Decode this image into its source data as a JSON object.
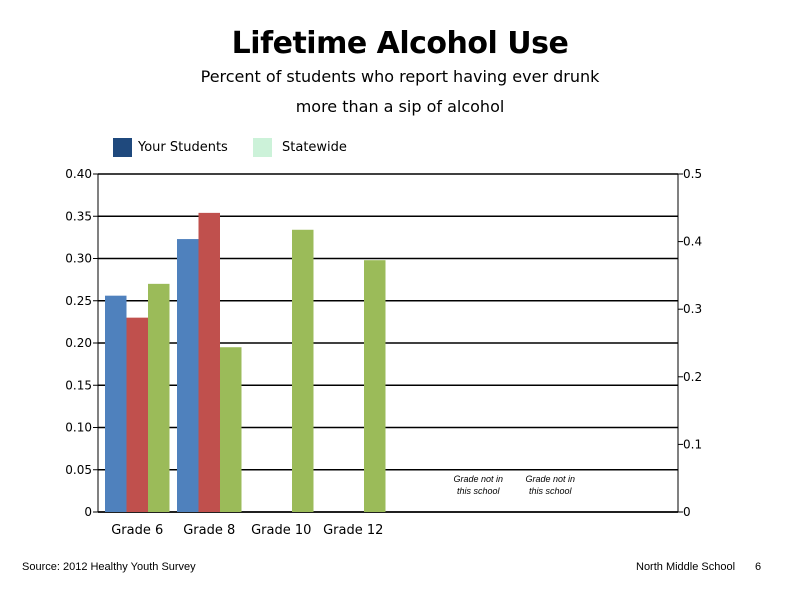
{
  "title": "Lifetime Alcohol Use",
  "subtitle_line1": "Percent of students who report having ever drunk",
  "subtitle_line2": "more than a sip of alcohol",
  "legend": [
    {
      "label": "Your Students",
      "color": "#1f497d"
    },
    {
      "label": "Statewide",
      "color": "#ccf2d9"
    }
  ],
  "footer": {
    "source": "Source: 2012 Healthy Youth Survey",
    "school": "North Middle School",
    "page": "6"
  },
  "chart_data": {
    "type": "bar",
    "categories": [
      "Grade 6",
      "Grade 8",
      "Grade 10",
      "Grade 12",
      "",
      ""
    ],
    "series": [
      {
        "color": "#4f81bd",
        "values": [
          0.256,
          0.323,
          null,
          null,
          null,
          null
        ]
      },
      {
        "color": "#c0504d",
        "values": [
          0.23,
          0.354,
          null,
          null,
          null,
          null
        ]
      },
      {
        "color": "#9bbb59",
        "values": [
          0.27,
          0.195,
          0.334,
          0.298,
          null,
          null
        ]
      }
    ],
    "left_axis": {
      "ylim": [
        0,
        0.4
      ],
      "ticks": [
        "0",
        "0.05",
        "0.10",
        "0.15",
        "0.20",
        "0.25",
        "0.30",
        "0.35",
        "0.40"
      ]
    },
    "right_axis": {
      "ylim": [
        0,
        0.5
      ],
      "ticks": [
        "0",
        "0.1",
        "0.2",
        "0.3",
        "0.4",
        "0.5"
      ]
    },
    "annotations": [
      {
        "category_index": 4,
        "line1": "Grade not in",
        "line2": "this school"
      },
      {
        "category_index": 5,
        "line1": "Grade not in",
        "line2": "this school"
      }
    ],
    "grid": true
  }
}
